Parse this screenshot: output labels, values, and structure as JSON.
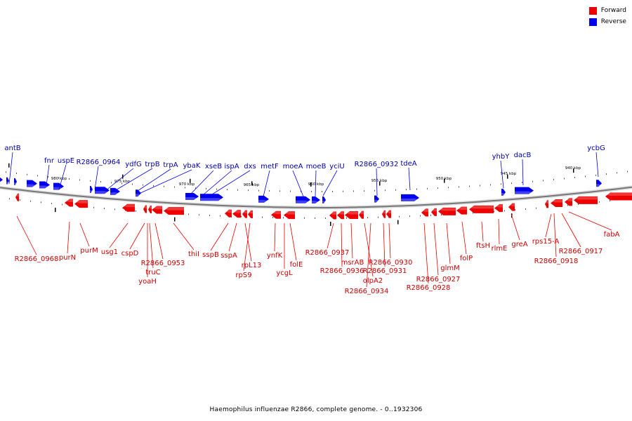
{
  "legend": {
    "items": [
      {
        "label": "Forward",
        "color": "#ee0000"
      },
      {
        "label": "Reverse",
        "color": "#0000ee"
      }
    ]
  },
  "caption": "Haemophilus influenzae R2866, complete genome. - 0..1932306",
  "colors": {
    "forward": "#ee0000",
    "forward_label": "#cc0000",
    "reverse": "#0000ee",
    "reverse_label": "#0000aa",
    "backbone": "#777777",
    "tick": "#000000"
  },
  "scale_labels": [
    "980 kbp",
    "975 kbp",
    "970 kbp",
    "965 kbp",
    "960 kbp",
    "955 kbp",
    "950 kbp",
    "945 kbp",
    "940 kbp"
  ],
  "reverse_genes": [
    "antB",
    "fnr",
    "uspE",
    "R2866_0964",
    "ydfG",
    "trpB",
    "trpA",
    "ybaK",
    "xseB",
    "ispA",
    "dxs",
    "metF",
    "moeA",
    "moeB",
    "yciU",
    "R2866_0932",
    "tdeA",
    "yhbY",
    "dacB",
    "ycbG"
  ],
  "forward_genes": [
    "R2866_0968",
    "purN",
    "purM",
    "usg1",
    "cspD",
    "R2866_0953",
    "truC",
    "yoaH",
    "thiI",
    "sspB",
    "sspA",
    "rpL13",
    "rpS9",
    "ynfK",
    "ycgL",
    "folE",
    "R2866_0937",
    "msrAB",
    "R2866_0936",
    "olpA2",
    "R2866_0934",
    "R2866_0930",
    "R2866_0931",
    "R2866_0927",
    "R2866_0928",
    "glmM",
    "folP",
    "ftsH",
    "rlmE",
    "greA",
    "rps15-A",
    "R2866_0918",
    "R2866_0917",
    "fabA"
  ]
}
